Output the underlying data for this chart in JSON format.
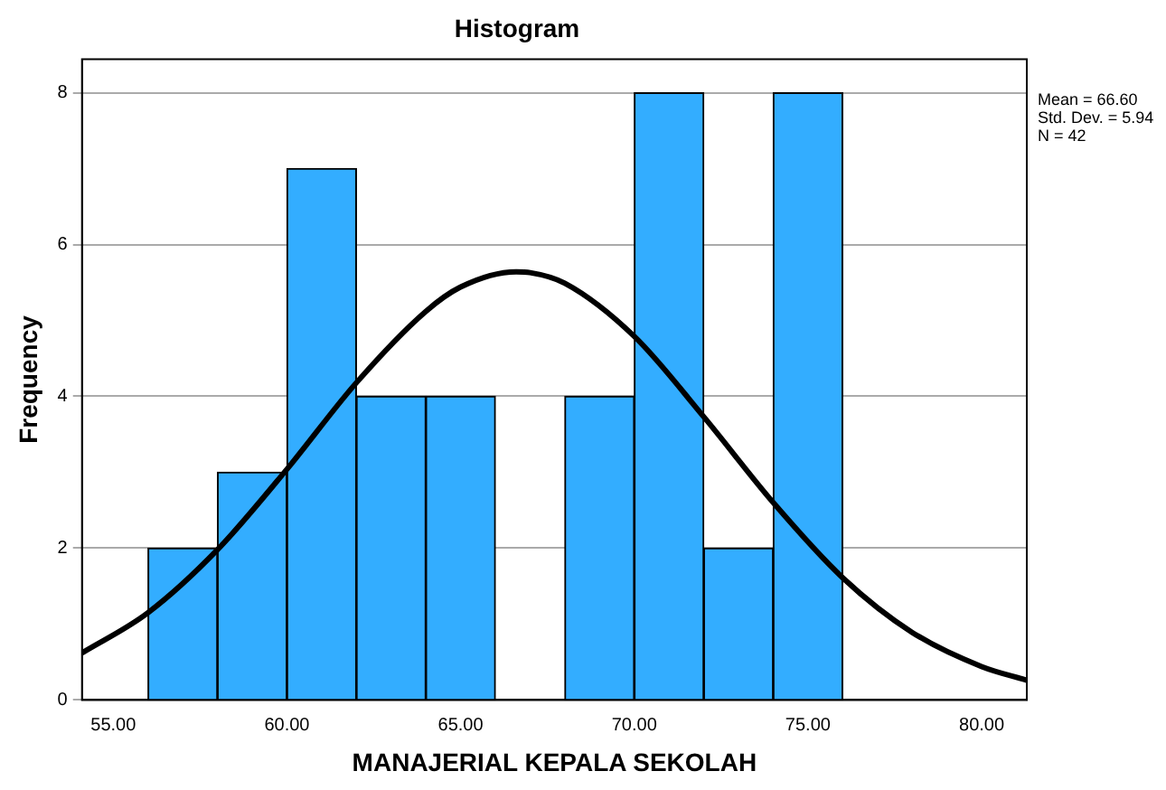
{
  "chart_data": {
    "type": "histogram",
    "title": "Histogram",
    "xlabel": "MANAJERIAL KEPALA SEKOLAH",
    "ylabel": "Frequency",
    "bins": [
      56,
      58,
      60,
      62,
      64,
      66,
      68,
      70,
      72,
      74,
      76
    ],
    "values": [
      2,
      3,
      7,
      4,
      4,
      0,
      4,
      8,
      2,
      8
    ],
    "color": "#33adff",
    "series": [
      {
        "type": "line",
        "color": "#000000",
        "x": [
          54.1,
          56,
          58,
          60,
          62,
          64,
          65,
          66.6,
          67,
          68,
          70,
          72,
          74,
          76,
          78,
          80,
          81.3
        ],
        "values": [
          0.62,
          1.15,
          1.98,
          3.04,
          4.18,
          5.12,
          5.44,
          5.64,
          5.63,
          5.49,
          4.79,
          3.73,
          2.6,
          1.61,
          0.89,
          0.44,
          0.26
        ]
      }
    ],
    "xlim": [
      54.1,
      81.3
    ],
    "xticks": [
      {
        "value": 55,
        "label": "55.00"
      },
      {
        "value": 60,
        "label": "60.00"
      },
      {
        "value": 65,
        "label": "65.00"
      },
      {
        "value": 70,
        "label": "70.00"
      },
      {
        "value": 75,
        "label": "75.00"
      },
      {
        "value": 80,
        "label": "80.00"
      }
    ],
    "ylim": [
      0,
      8.44
    ],
    "yticks": [
      0,
      2,
      4,
      6,
      8
    ],
    "grid": "y",
    "legend": false,
    "marker": "none",
    "line_style": "solid",
    "annotations": [
      "Mean = 66.60",
      "Std. Dev. = 5.94",
      "N = 42"
    ]
  }
}
